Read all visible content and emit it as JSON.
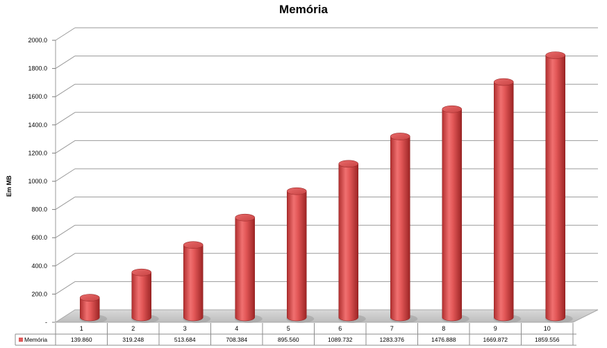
{
  "chart_data": {
    "type": "bar",
    "title": "Memória",
    "xlabel": "",
    "ylabel": "Em MB",
    "ylim": [
      0,
      2000
    ],
    "yticks": [
      0,
      200,
      400,
      600,
      800,
      1000,
      1200,
      1400,
      1600,
      1800,
      2000
    ],
    "ytick_labels": [
      "-",
      "200.0",
      "400.0",
      "600.0",
      "800.0",
      "1000.0",
      "1200.0",
      "1400.0",
      "1600.0",
      "1800.0",
      "2000.0"
    ],
    "grid": true,
    "categories": [
      "1",
      "2",
      "3",
      "4",
      "5",
      "6",
      "7",
      "8",
      "9",
      "10"
    ],
    "series": [
      {
        "name": "Memória",
        "values": [
          139.86,
          319.248,
          513.684,
          708.384,
          895.56,
          1089.732,
          1283.376,
          1476.888,
          1669.872,
          1859.556
        ],
        "value_labels": [
          "139.860",
          "319.248",
          "513.684",
          "708.384",
          "895.560",
          "1089.732",
          "1283.376",
          "1476.888",
          "1669.872",
          "1859.556"
        ],
        "color": "#e05a5a"
      }
    ],
    "data_table": true
  }
}
